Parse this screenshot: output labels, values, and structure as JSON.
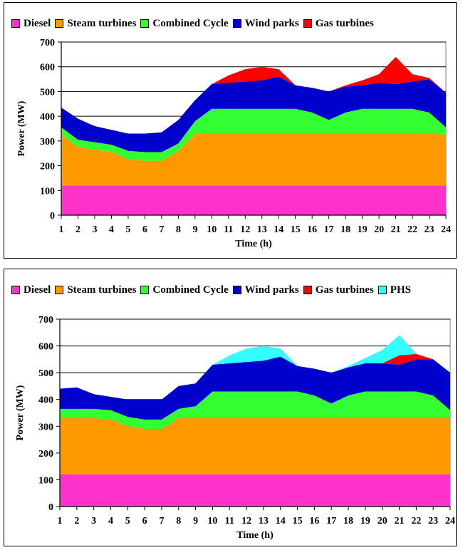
{
  "colors": {
    "Diesel": "#ff33cc",
    "Steam turbines": "#ff9900",
    "Combined Cycle": "#33ff33",
    "Wind parks": "#0000cc",
    "Gas turbines": "#ff0000",
    "PHS": "#33ffff"
  },
  "chart_data": [
    {
      "type": "area",
      "stacked": true,
      "x": [
        1,
        2,
        3,
        4,
        5,
        6,
        7,
        8,
        9,
        10,
        11,
        12,
        13,
        14,
        15,
        16,
        17,
        18,
        19,
        20,
        21,
        22,
        23,
        24
      ],
      "xlabel": "Time (h)",
      "ylabel": "Power (MW)",
      "ylim": [
        0,
        700
      ],
      "yticks": [
        0,
        100,
        200,
        300,
        400,
        500,
        600,
        700
      ],
      "grid": "horizontal",
      "legend": "top",
      "series": [
        {
          "name": "Diesel",
          "values": [
            120,
            120,
            120,
            120,
            120,
            120,
            120,
            120,
            120,
            120,
            120,
            120,
            120,
            120,
            120,
            120,
            120,
            120,
            120,
            120,
            120,
            120,
            120,
            120
          ]
        },
        {
          "name": "Steam turbines",
          "values": [
            205,
            155,
            145,
            135,
            105,
            100,
            100,
            140,
            210,
            210,
            210,
            210,
            210,
            210,
            210,
            210,
            210,
            210,
            210,
            210,
            210,
            210,
            210,
            205
          ]
        },
        {
          "name": "Combined Cycle",
          "values": [
            30,
            30,
            30,
            30,
            35,
            35,
            35,
            30,
            50,
            100,
            100,
            100,
            100,
            100,
            100,
            85,
            55,
            85,
            100,
            100,
            100,
            100,
            85,
            30
          ]
        },
        {
          "name": "Wind parks",
          "values": [
            80,
            85,
            65,
            60,
            70,
            75,
            80,
            95,
            85,
            100,
            105,
            110,
            115,
            130,
            95,
            100,
            115,
            105,
            95,
            105,
            100,
            110,
            135,
            140
          ]
        },
        {
          "name": "Gas turbines",
          "values": [
            0,
            0,
            0,
            0,
            0,
            0,
            0,
            0,
            0,
            0,
            30,
            50,
            55,
            30,
            0,
            0,
            0,
            5,
            20,
            35,
            110,
            30,
            5,
            0
          ]
        }
      ]
    },
    {
      "type": "area",
      "stacked": true,
      "x": [
        1,
        2,
        3,
        4,
        5,
        6,
        7,
        8,
        9,
        10,
        11,
        12,
        13,
        14,
        15,
        16,
        17,
        18,
        19,
        20,
        21,
        22,
        23,
        24
      ],
      "xlabel": "Time (h)",
      "ylabel": "Power (MW)",
      "ylim": [
        0,
        700
      ],
      "yticks": [
        0,
        100,
        200,
        300,
        400,
        500,
        600,
        700
      ],
      "grid": "horizontal",
      "legend": "top",
      "series": [
        {
          "name": "Diesel",
          "values": [
            120,
            120,
            120,
            120,
            120,
            120,
            120,
            120,
            120,
            120,
            120,
            120,
            120,
            120,
            120,
            120,
            120,
            120,
            120,
            120,
            120,
            120,
            120,
            120
          ]
        },
        {
          "name": "Steam turbines",
          "values": [
            210,
            210,
            210,
            205,
            180,
            170,
            170,
            210,
            210,
            210,
            210,
            210,
            210,
            210,
            210,
            210,
            210,
            210,
            210,
            210,
            210,
            210,
            210,
            210
          ]
        },
        {
          "name": "Combined Cycle",
          "values": [
            35,
            35,
            35,
            35,
            35,
            35,
            35,
            35,
            45,
            100,
            100,
            100,
            100,
            100,
            100,
            85,
            55,
            85,
            100,
            100,
            100,
            100,
            85,
            30
          ]
        },
        {
          "name": "Wind parks",
          "values": [
            75,
            80,
            55,
            50,
            65,
            75,
            75,
            85,
            85,
            100,
            105,
            110,
            115,
            130,
            95,
            100,
            115,
            105,
            105,
            105,
            100,
            120,
            135,
            140
          ]
        },
        {
          "name": "Gas turbines",
          "values": [
            0,
            0,
            0,
            0,
            0,
            0,
            0,
            0,
            0,
            0,
            0,
            0,
            0,
            0,
            0,
            0,
            0,
            0,
            0,
            0,
            35,
            20,
            0,
            0
          ]
        },
        {
          "name": "PHS",
          "values": [
            0,
            0,
            0,
            0,
            0,
            0,
            0,
            0,
            0,
            0,
            30,
            50,
            55,
            30,
            0,
            0,
            0,
            5,
            20,
            50,
            75,
            0,
            0,
            0
          ]
        }
      ]
    }
  ]
}
